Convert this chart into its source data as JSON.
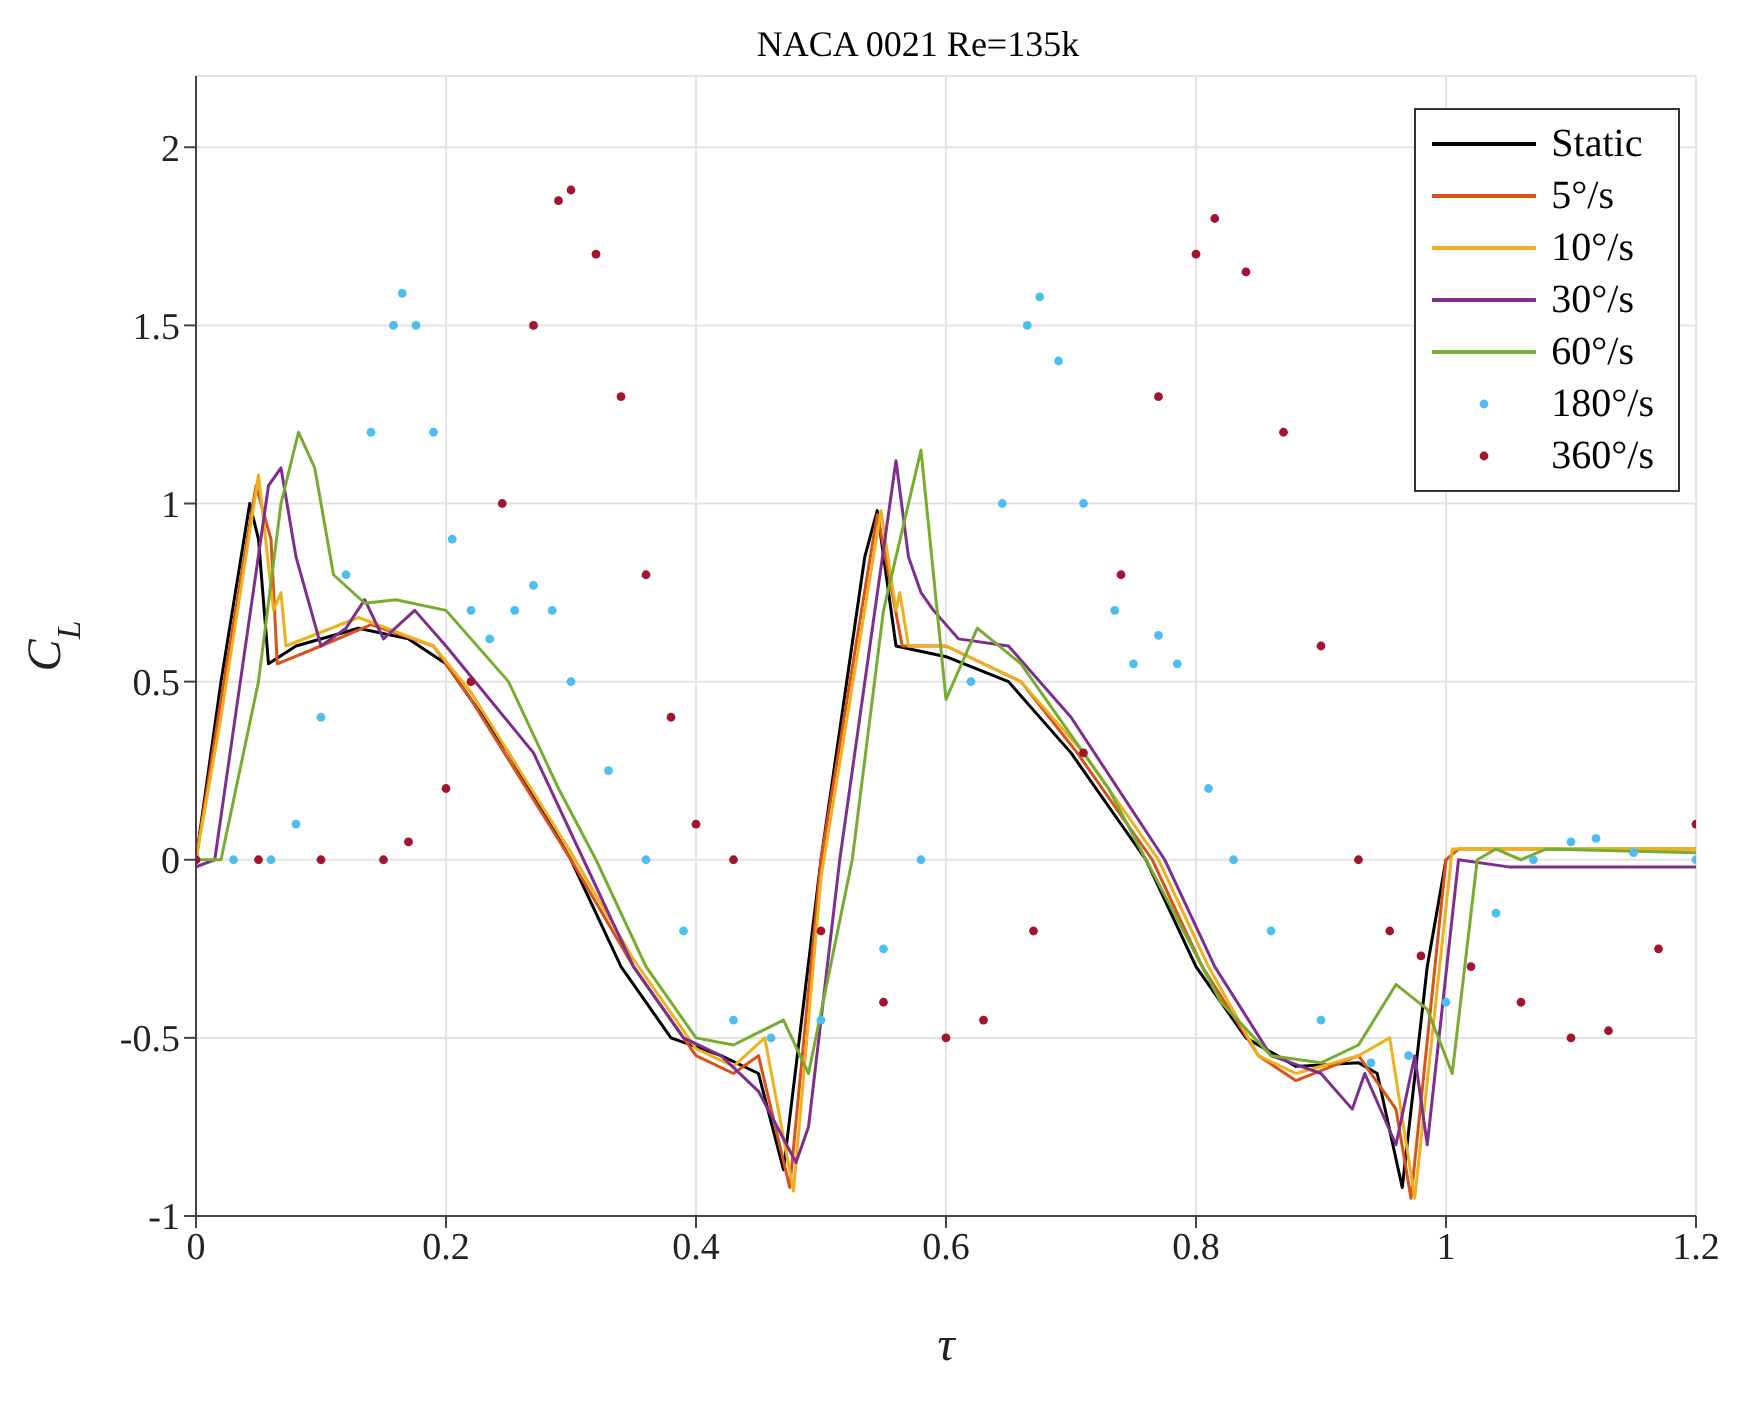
{
  "chart_data": {
    "type": "line",
    "title": "NACA 0021 Re=135k",
    "xlabel": "τ",
    "ylabel": "C$_{L}$",
    "xlim": [
      0,
      1.2
    ],
    "xticks": [
      0,
      0.2,
      0.4,
      0.6,
      0.8,
      1,
      1.2
    ],
    "ylim": [
      -1,
      2.2
    ],
    "yticks": [
      -1,
      -0.5,
      0,
      0.5,
      1,
      1.5,
      2
    ],
    "grid": true,
    "legend": "top right",
    "line_style": "solid",
    "series": [
      {
        "name": "Static",
        "color": "#000000",
        "marker": "none",
        "x": [
          0,
          0.02,
          0.043,
          0.05,
          0.058,
          0.08,
          0.13,
          0.17,
          0.2,
          0.25,
          0.3,
          0.34,
          0.38,
          0.42,
          0.45,
          0.47,
          0.5,
          0.535,
          0.545,
          0.56,
          0.6,
          0.65,
          0.7,
          0.76,
          0.8,
          0.84,
          0.88,
          0.93,
          0.945,
          0.965,
          0.985,
          1.0
        ],
        "values": [
          0,
          0.5,
          1.0,
          0.9,
          0.55,
          0.6,
          0.65,
          0.62,
          0.55,
          0.3,
          0,
          -0.3,
          -0.5,
          -0.55,
          -0.6,
          -0.87,
          0,
          0.85,
          0.98,
          0.6,
          0.57,
          0.5,
          0.3,
          0,
          -0.3,
          -0.5,
          -0.58,
          -0.57,
          -0.6,
          -0.92,
          -0.3,
          0
        ]
      },
      {
        "name": "5°/s",
        "color": "#d95319",
        "marker": "none",
        "x": [
          0,
          0.02,
          0.048,
          0.06,
          0.065,
          0.1,
          0.14,
          0.19,
          0.22,
          0.3,
          0.35,
          0.4,
          0.43,
          0.45,
          0.475,
          0.5,
          0.545,
          0.565,
          0.6,
          0.66,
          0.705,
          0.765,
          0.805,
          0.85,
          0.88,
          0.93,
          0.96,
          0.972,
          1.0,
          1.01,
          1.2
        ],
        "values": [
          0,
          0.45,
          1.05,
          0.9,
          0.55,
          0.6,
          0.66,
          0.6,
          0.45,
          0,
          -0.3,
          -0.55,
          -0.6,
          -0.55,
          -0.92,
          0,
          0.97,
          0.6,
          0.6,
          0.5,
          0.3,
          0,
          -0.3,
          -0.55,
          -0.62,
          -0.55,
          -0.7,
          -0.95,
          0,
          0.03,
          0.03
        ]
      },
      {
        "name": "10°/s",
        "color": "#edb120",
        "marker": "none",
        "x": [
          0,
          0.02,
          0.05,
          0.062,
          0.068,
          0.072,
          0.13,
          0.19,
          0.22,
          0.3,
          0.35,
          0.4,
          0.43,
          0.455,
          0.478,
          0.5,
          0.548,
          0.56,
          0.563,
          0.57,
          0.6,
          0.66,
          0.71,
          0.77,
          0.81,
          0.85,
          0.88,
          0.93,
          0.955,
          0.975,
          1.005,
          1.2
        ],
        "values": [
          0,
          0.4,
          1.08,
          0.7,
          0.75,
          0.6,
          0.68,
          0.6,
          0.47,
          0.02,
          -0.28,
          -0.53,
          -0.58,
          -0.5,
          -0.93,
          -0.05,
          0.98,
          0.7,
          0.75,
          0.6,
          0.6,
          0.5,
          0.3,
          0,
          -0.3,
          -0.55,
          -0.6,
          -0.55,
          -0.5,
          -0.95,
          0.03,
          0.03
        ]
      },
      {
        "name": "30°/s",
        "color": "#7e2f8e",
        "marker": "none",
        "x": [
          0,
          0.015,
          0.058,
          0.068,
          0.08,
          0.1,
          0.12,
          0.135,
          0.15,
          0.175,
          0.2,
          0.27,
          0.31,
          0.35,
          0.39,
          0.42,
          0.45,
          0.48,
          0.49,
          0.515,
          0.56,
          0.57,
          0.58,
          0.59,
          0.61,
          0.65,
          0.7,
          0.775,
          0.815,
          0.86,
          0.9,
          0.925,
          0.935,
          0.96,
          0.975,
          0.985,
          1.01,
          1.05,
          1.2
        ],
        "values": [
          -0.02,
          0,
          1.05,
          1.1,
          0.85,
          0.6,
          0.65,
          0.73,
          0.62,
          0.7,
          0.6,
          0.3,
          0,
          -0.3,
          -0.5,
          -0.55,
          -0.65,
          -0.85,
          -0.75,
          0,
          1.12,
          0.85,
          0.75,
          0.7,
          0.62,
          0.6,
          0.4,
          0,
          -0.3,
          -0.55,
          -0.6,
          -0.7,
          -0.6,
          -0.8,
          -0.55,
          -0.8,
          0,
          -0.02,
          -0.02
        ]
      },
      {
        "name": "60°/s",
        "color": "#77ac30",
        "marker": "none",
        "x": [
          0,
          0.02,
          0.05,
          0.068,
          0.082,
          0.095,
          0.11,
          0.135,
          0.16,
          0.2,
          0.25,
          0.29,
          0.32,
          0.36,
          0.4,
          0.43,
          0.47,
          0.49,
          0.525,
          0.55,
          0.58,
          0.59,
          0.6,
          0.625,
          0.66,
          0.73,
          0.76,
          0.82,
          0.86,
          0.9,
          0.93,
          0.96,
          0.985,
          1.005,
          1.025,
          1.04,
          1.06,
          1.08,
          1.2
        ],
        "values": [
          0,
          0,
          0.5,
          1.0,
          1.2,
          1.1,
          0.8,
          0.72,
          0.73,
          0.7,
          0.5,
          0.2,
          0,
          -0.3,
          -0.5,
          -0.52,
          -0.45,
          -0.6,
          0,
          0.7,
          1.15,
          0.8,
          0.45,
          0.65,
          0.55,
          0.2,
          0,
          -0.4,
          -0.55,
          -0.57,
          -0.52,
          -0.35,
          -0.42,
          -0.6,
          0,
          0.03,
          0,
          0.03,
          0.02
        ]
      },
      {
        "name": "180°/s",
        "color": "#4dbeee",
        "type": "scatter",
        "marker": "circle",
        "x": [
          0,
          0.03,
          0.06,
          0.08,
          0.1,
          0.12,
          0.14,
          0.158,
          0.165,
          0.176,
          0.19,
          0.205,
          0.22,
          0.235,
          0.255,
          0.27,
          0.285,
          0.3,
          0.33,
          0.36,
          0.39,
          0.43,
          0.46,
          0.5,
          0.55,
          0.58,
          0.62,
          0.645,
          0.665,
          0.675,
          0.69,
          0.71,
          0.735,
          0.75,
          0.77,
          0.785,
          0.81,
          0.83,
          0.86,
          0.9,
          0.94,
          0.97,
          1.0,
          1.04,
          1.07,
          1.1,
          1.12,
          1.15,
          1.2
        ],
        "values": [
          0,
          0,
          0,
          0.1,
          0.4,
          0.8,
          1.2,
          1.5,
          1.59,
          1.5,
          1.2,
          0.9,
          0.7,
          0.62,
          0.7,
          0.77,
          0.7,
          0.5,
          0.25,
          0,
          -0.2,
          -0.45,
          -0.5,
          -0.45,
          -0.25,
          0,
          0.5,
          1.0,
          1.5,
          1.58,
          1.4,
          1.0,
          0.7,
          0.55,
          0.63,
          0.55,
          0.2,
          0,
          -0.2,
          -0.45,
          -0.57,
          -0.55,
          -0.4,
          -0.15,
          0,
          0.05,
          0.06,
          0.02,
          0
        ]
      },
      {
        "name": "360°/s",
        "color": "#a2142f",
        "type": "scatter",
        "marker": "circle",
        "x": [
          0,
          0.05,
          0.1,
          0.15,
          0.17,
          0.2,
          0.22,
          0.245,
          0.27,
          0.29,
          0.3,
          0.32,
          0.34,
          0.36,
          0.38,
          0.4,
          0.43,
          0.5,
          0.55,
          0.6,
          0.63,
          0.67,
          0.71,
          0.74,
          0.77,
          0.8,
          0.815,
          0.84,
          0.87,
          0.9,
          0.93,
          0.955,
          0.98,
          1.02,
          1.06,
          1.1,
          1.13,
          1.17,
          1.2
        ],
        "values": [
          0,
          0,
          0,
          0,
          0.05,
          0.2,
          0.5,
          1.0,
          1.5,
          1.85,
          1.88,
          1.7,
          1.3,
          0.8,
          0.4,
          0.1,
          0,
          -0.2,
          -0.4,
          -0.5,
          -0.45,
          -0.2,
          0.3,
          0.8,
          1.3,
          1.7,
          1.8,
          1.65,
          1.2,
          0.6,
          0,
          -0.2,
          -0.27,
          -0.3,
          -0.4,
          -0.5,
          -0.48,
          -0.25,
          0.1
        ]
      }
    ]
  }
}
